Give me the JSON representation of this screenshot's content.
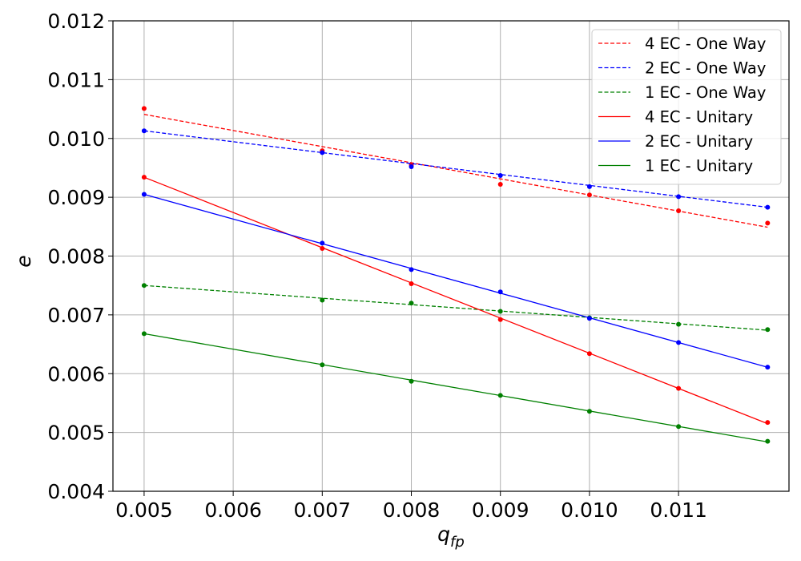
{
  "chart_data": {
    "type": "line",
    "title": "",
    "xlabel": "q_fp",
    "xlabel_main": "q",
    "xlabel_sub": "fp",
    "ylabel": "e",
    "xlim": [
      0.00465,
      0.01224
    ],
    "ylim": [
      0.004,
      0.012
    ],
    "xticks": [
      0.005,
      0.006,
      0.007,
      0.008,
      0.009,
      0.01,
      0.011
    ],
    "xtick_labels": [
      "0.005",
      "0.006",
      "0.007",
      "0.008",
      "0.009",
      "0.010",
      "0.011"
    ],
    "yticks": [
      0.004,
      0.005,
      0.006,
      0.007,
      0.008,
      0.009,
      0.01,
      0.011,
      0.012
    ],
    "ytick_labels": [
      "0.004",
      "0.005",
      "0.006",
      "0.007",
      "0.008",
      "0.009",
      "0.010",
      "0.011",
      "0.012"
    ],
    "grid": true,
    "legend_position": "top-right",
    "series": [
      {
        "name": "4 EC - One Way",
        "color": "#ff0000",
        "style": "dashed",
        "x": [
          0.005,
          0.007,
          0.008,
          0.009,
          0.01,
          0.011,
          0.012
        ],
        "y": [
          0.01051,
          0.00979,
          0.00955,
          0.00922,
          0.00904,
          0.00877,
          0.00856
        ],
        "fit": [
          [
            0.005,
            0.01041
          ],
          [
            0.012,
            0.00849
          ]
        ]
      },
      {
        "name": "2 EC - One Way",
        "color": "#0000ff",
        "style": "dashed",
        "x": [
          0.005,
          0.007,
          0.008,
          0.009,
          0.01,
          0.011,
          0.012
        ],
        "y": [
          0.01013,
          0.00976,
          0.00952,
          0.00937,
          0.00918,
          0.00901,
          0.00883
        ],
        "fit": [
          [
            0.005,
            0.01013
          ],
          [
            0.012,
            0.00883
          ]
        ]
      },
      {
        "name": "1 EC - One Way",
        "color": "#008000",
        "style": "dashed",
        "x": [
          0.005,
          0.007,
          0.008,
          0.009,
          0.01,
          0.011,
          0.012
        ],
        "y": [
          0.0075,
          0.00725,
          0.0072,
          0.00706,
          0.00695,
          0.00684,
          0.00675
        ],
        "fit": [
          [
            0.005,
            0.0075
          ],
          [
            0.012,
            0.00674
          ]
        ]
      },
      {
        "name": "4 EC - Unitary",
        "color": "#ff0000",
        "style": "solid",
        "x": [
          0.005,
          0.007,
          0.008,
          0.009,
          0.01,
          0.011,
          0.012
        ],
        "y": [
          0.00934,
          0.00813,
          0.00753,
          0.00692,
          0.00634,
          0.00575,
          0.00517
        ],
        "fit": [
          [
            0.005,
            0.00934
          ],
          [
            0.012,
            0.00515
          ]
        ]
      },
      {
        "name": "2 EC - Unitary",
        "color": "#0000ff",
        "style": "solid",
        "x": [
          0.005,
          0.007,
          0.008,
          0.009,
          0.01,
          0.011,
          0.012
        ],
        "y": [
          0.00905,
          0.00822,
          0.00777,
          0.00739,
          0.00694,
          0.00653,
          0.00611
        ],
        "fit": [
          [
            0.005,
            0.00905
          ],
          [
            0.012,
            0.00611
          ]
        ]
      },
      {
        "name": "1 EC - Unitary",
        "color": "#008000",
        "style": "solid",
        "x": [
          0.005,
          0.007,
          0.008,
          0.009,
          0.01,
          0.011,
          0.012
        ],
        "y": [
          0.00668,
          0.00615,
          0.00587,
          0.00563,
          0.00536,
          0.0051,
          0.00485
        ],
        "fit": [
          [
            0.005,
            0.00668
          ],
          [
            0.012,
            0.00484
          ]
        ]
      }
    ]
  }
}
